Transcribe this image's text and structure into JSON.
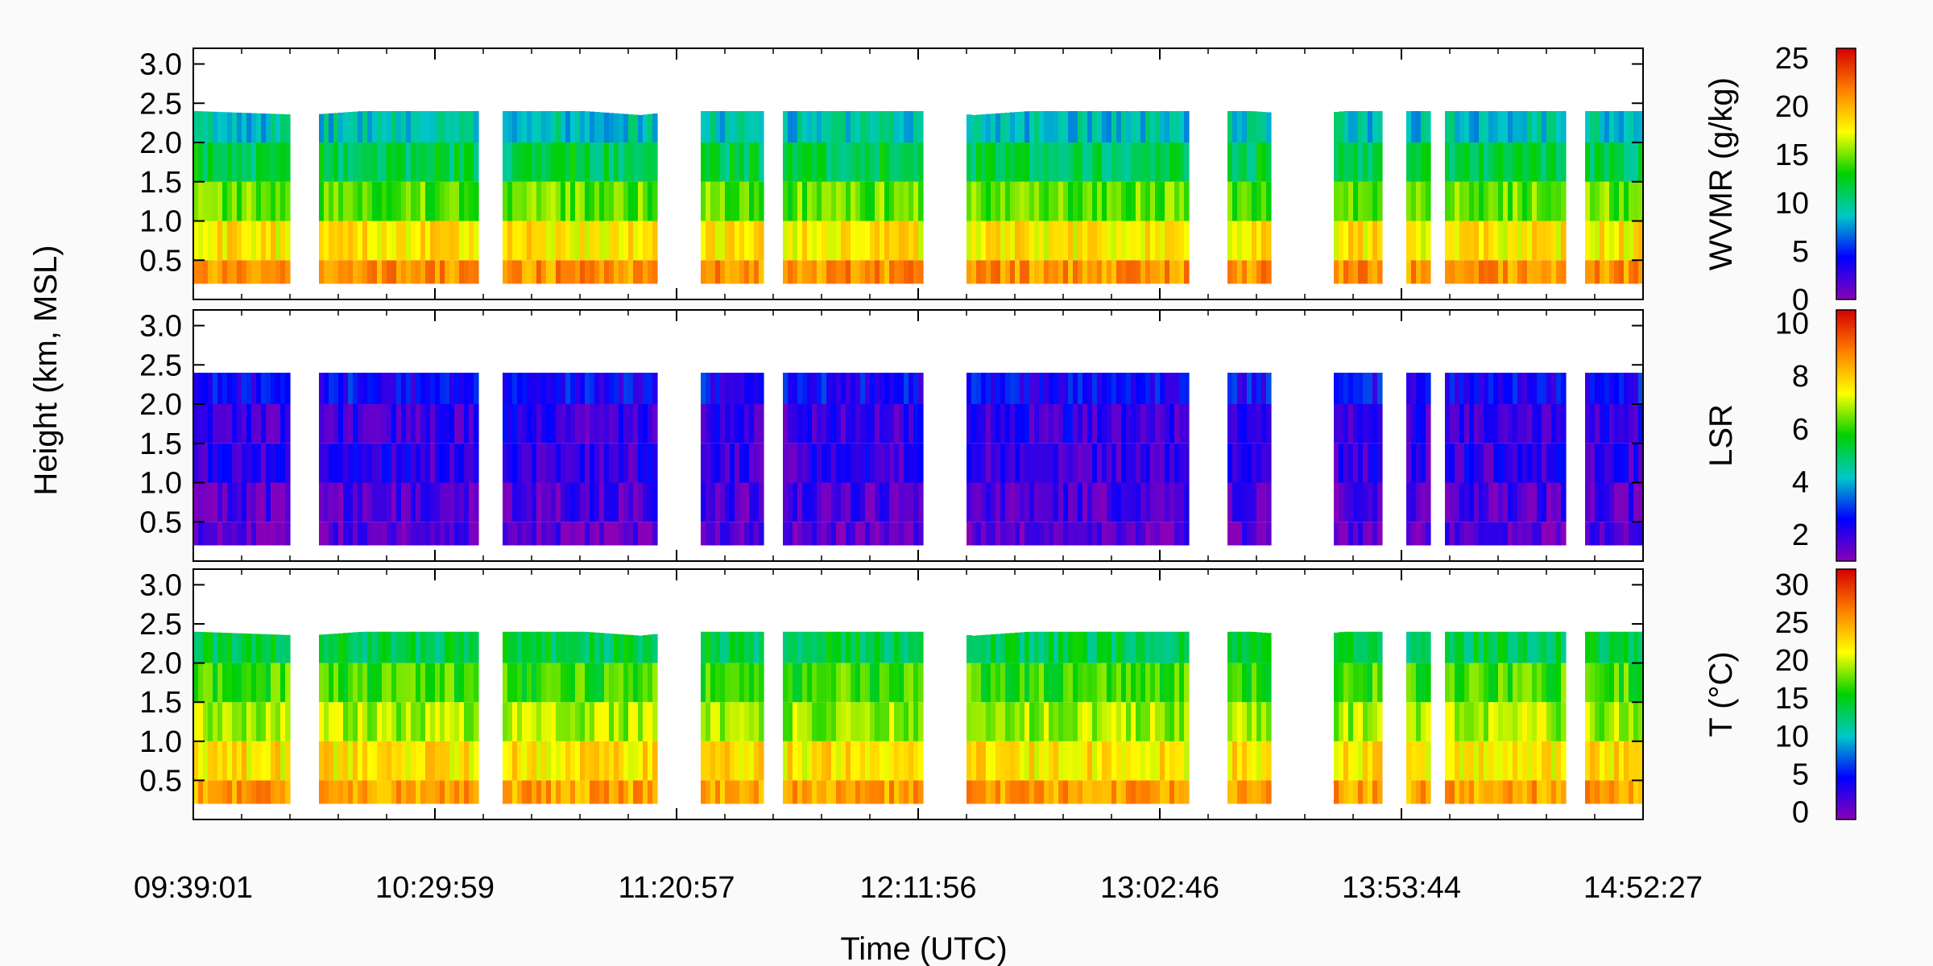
{
  "figure": {
    "ylabel": "Height (km, MSL)",
    "xlabel": "Time (UTC)",
    "x_tick_labels": [
      "09:39:01",
      "10:29:59",
      "11:20:57",
      "12:11:56",
      "13:02:46",
      "13:53:44",
      "14:52:27"
    ]
  },
  "chart_data": [
    {
      "type": "heatmap",
      "title": "",
      "variable_label": "WVMR (g/kg)",
      "ylabel": "Height (km, MSL)",
      "xlabel": "Time (UTC)",
      "ylim": [
        0.0,
        3.2
      ],
      "y_ticks": [
        0.5,
        1.0,
        1.5,
        2.0,
        2.5,
        3.0
      ],
      "y_tick_labels": [
        "0.5",
        "1.0",
        "1.5",
        "2.0",
        "2.5",
        "3.0"
      ],
      "x_range": [
        "09:39:01",
        "14:52:27"
      ],
      "x_tick_labels": [
        "09:39:01",
        "10:29:59",
        "11:20:57",
        "12:11:56",
        "13:02:46",
        "13:53:44",
        "14:52:27"
      ],
      "colorbar": {
        "min": 0,
        "max": 26,
        "ticks": [
          0,
          5,
          10,
          15,
          20,
          25
        ],
        "tick_labels": [
          "0",
          "5",
          "10",
          "15",
          "20",
          "25"
        ],
        "colormap": [
          "#8a00b8",
          "#0000ff",
          "#00c8c8",
          "#00d000",
          "#ffff00",
          "#ff8000",
          "#d40000"
        ]
      },
      "data_top_km": [
        2.4,
        2.35,
        2.45,
        2.45,
        2.35,
        2.5,
        2.5,
        2.35,
        2.45,
        2.45,
        2.35,
        2.5,
        2.4,
        2.5
      ],
      "profile_values": {
        "heights_km": [
          0.2,
          0.5,
          1.0,
          1.5,
          2.0,
          2.4
        ],
        "typical_values": [
          22,
          20,
          16,
          13,
          10,
          8
        ]
      }
    },
    {
      "type": "heatmap",
      "title": "",
      "variable_label": "LSR",
      "ylabel": "Height (km, MSL)",
      "xlabel": "Time (UTC)",
      "ylim": [
        0.0,
        3.2
      ],
      "y_ticks": [
        0.5,
        1.0,
        1.5,
        2.0,
        2.5,
        3.0
      ],
      "y_tick_labels": [
        "0.5",
        "1.0",
        "1.5",
        "2.0",
        "2.5",
        "3.0"
      ],
      "x_range": [
        "09:39:01",
        "14:52:27"
      ],
      "x_tick_labels": [
        "09:39:01",
        "10:29:59",
        "11:20:57",
        "12:11:56",
        "13:02:46",
        "13:53:44",
        "14:52:27"
      ],
      "colorbar": {
        "min": 1,
        "max": 10.5,
        "ticks": [
          2,
          4,
          6,
          8,
          10
        ],
        "tick_labels": [
          "2",
          "4",
          "6",
          "8",
          "10"
        ],
        "colormap": [
          "#8a00b8",
          "#0000ff",
          "#00c8c8",
          "#00d000",
          "#ffff00",
          "#ff8000",
          "#d40000"
        ]
      },
      "data_top_km": [
        2.4,
        2.4,
        2.45,
        2.45,
        2.4,
        2.5,
        2.5,
        2.4,
        2.45,
        2.5,
        2.4,
        2.5,
        2.45,
        2.5
      ],
      "profile_values": {
        "heights_km": [
          0.2,
          0.5,
          1.0,
          1.5,
          2.0,
          2.4
        ],
        "typical_values": [
          1.5,
          1.5,
          2,
          2,
          2,
          3
        ]
      }
    },
    {
      "type": "heatmap",
      "title": "",
      "variable_label": "T (°C)",
      "ylabel": "Height (km, MSL)",
      "xlabel": "Time (UTC)",
      "ylim": [
        0.0,
        3.2
      ],
      "y_ticks": [
        0.5,
        1.0,
        1.5,
        2.0,
        2.5,
        3.0
      ],
      "y_tick_labels": [
        "0.5",
        "1.0",
        "1.5",
        "2.0",
        "2.5",
        "3.0"
      ],
      "x_range": [
        "09:39:01",
        "14:52:27"
      ],
      "x_tick_labels": [
        "09:39:01",
        "10:29:59",
        "11:20:57",
        "12:11:56",
        "13:02:46",
        "13:53:44",
        "14:52:27"
      ],
      "colorbar": {
        "min": -1,
        "max": 32,
        "ticks": [
          0,
          5,
          10,
          15,
          20,
          25,
          30
        ],
        "tick_labels": [
          "0",
          "5",
          "10",
          "15",
          "20",
          "25",
          "30"
        ],
        "colormap": [
          "#8a00b8",
          "#0000ff",
          "#00c8c8",
          "#00d000",
          "#ffff00",
          "#ff8000",
          "#d40000"
        ]
      },
      "data_top_km": [
        2.4,
        2.35,
        2.45,
        2.45,
        2.35,
        2.5,
        2.5,
        2.35,
        2.45,
        2.45,
        2.35,
        2.5,
        2.4,
        2.5
      ],
      "profile_values": {
        "heights_km": [
          0.2,
          0.5,
          1.0,
          1.5,
          2.0,
          2.4
        ],
        "typical_values": [
          26,
          24,
          20,
          18,
          15,
          12
        ]
      }
    }
  ]
}
